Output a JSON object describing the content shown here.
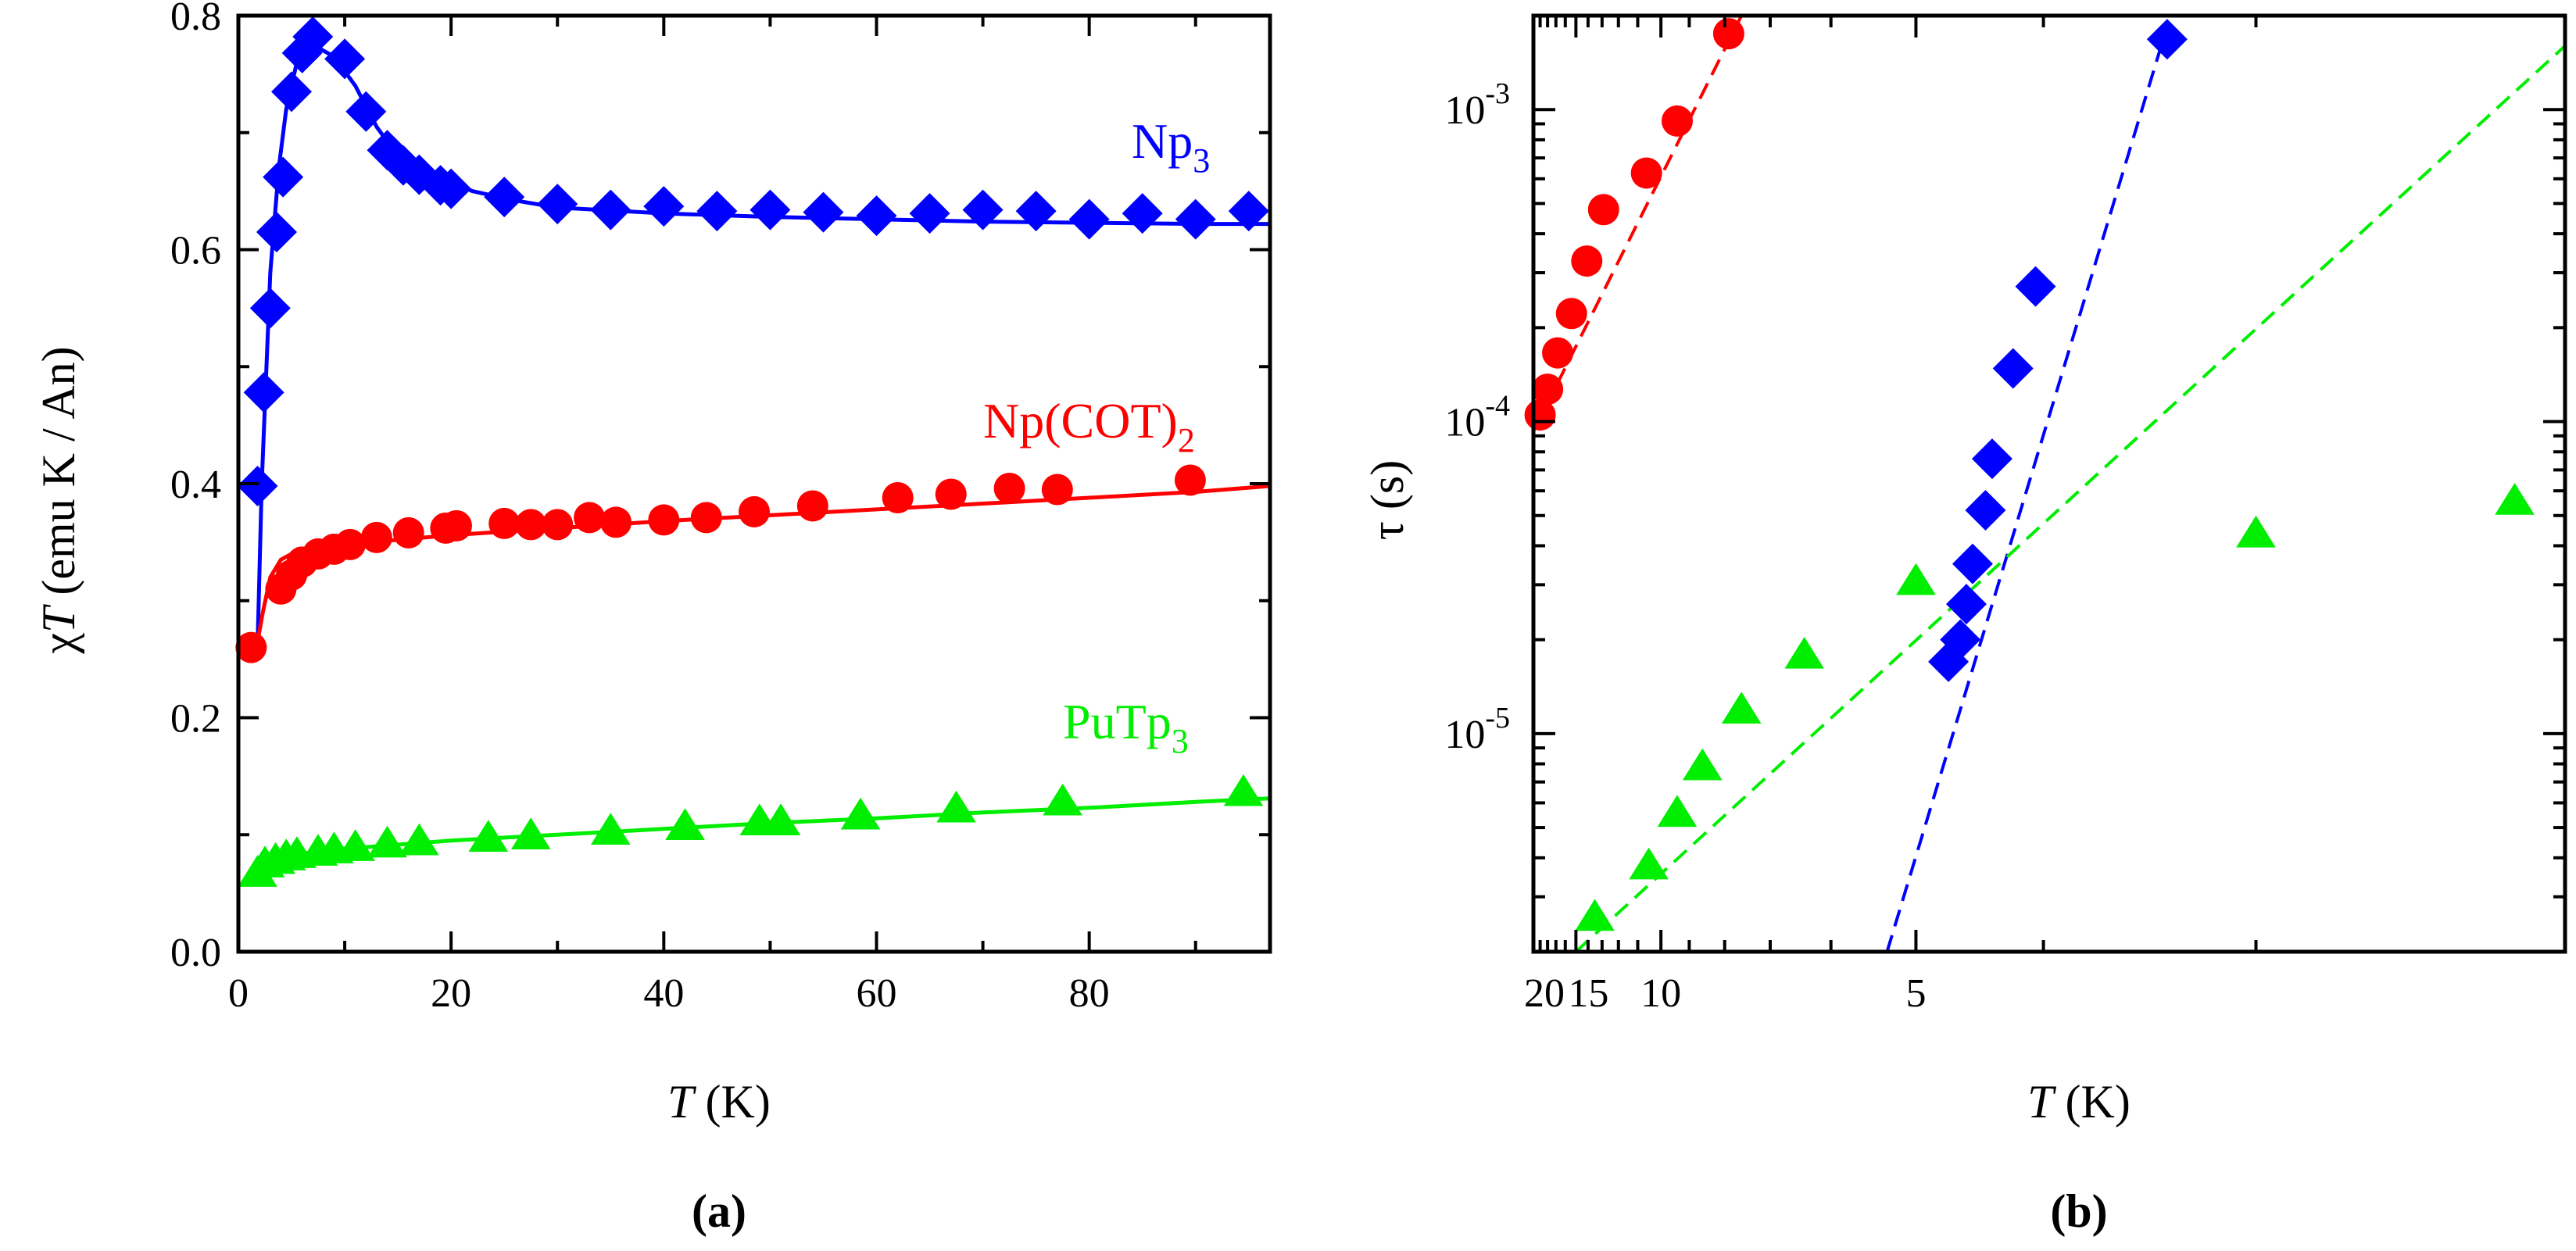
{
  "panels": {
    "a": {
      "label": "(a)"
    },
    "b": {
      "label": "(b)"
    }
  },
  "colors": {
    "np3": "#0000ff",
    "npcot2": "#ff0000",
    "putp3": "#00ee00",
    "axes": "#000000"
  },
  "chart_data": [
    {
      "type": "scatter",
      "panel": "(a)",
      "xlabel": {
        "italic": "T",
        "rest": " (K)"
      },
      "ylabel": {
        "prefix": "χ",
        "italic": "T",
        "rest": " (emu K / An)"
      },
      "xlim": [
        0,
        97
      ],
      "ylim": [
        0,
        0.8
      ],
      "xticks": [
        0,
        20,
        40,
        60,
        80
      ],
      "xtick_labels": [
        "0",
        "20",
        "40",
        "60",
        "80"
      ],
      "yticks": [
        0.0,
        0.2,
        0.4,
        0.6,
        0.8
      ],
      "ytick_labels": [
        "0.0",
        "0.2",
        "0.4",
        "0.6",
        "0.8"
      ],
      "series": [
        {
          "name": "Np3",
          "label_main": "Np",
          "label_sub": "3",
          "color": "#0000ff",
          "marker": "diamond",
          "points": [
            [
              1.8,
              0.398
            ],
            [
              2.4,
              0.478
            ],
            [
              3.0,
              0.55
            ],
            [
              3.6,
              0.615
            ],
            [
              4.2,
              0.662
            ],
            [
              5.0,
              0.735
            ],
            [
              6.0,
              0.768
            ],
            [
              7.0,
              0.782
            ],
            [
              10.0,
              0.763
            ],
            [
              12.0,
              0.718
            ],
            [
              14.0,
              0.685
            ],
            [
              15.5,
              0.672
            ],
            [
              17.0,
              0.664
            ],
            [
              19.0,
              0.655
            ],
            [
              20.0,
              0.652
            ],
            [
              25.0,
              0.645
            ],
            [
              30.0,
              0.639
            ],
            [
              35.0,
              0.634
            ],
            [
              40.0,
              0.637
            ],
            [
              45.0,
              0.633
            ],
            [
              50.0,
              0.634
            ],
            [
              55.0,
              0.632
            ],
            [
              60.0,
              0.629
            ],
            [
              65.0,
              0.631
            ],
            [
              70.0,
              0.634
            ],
            [
              75.0,
              0.633
            ],
            [
              80.0,
              0.626
            ],
            [
              85.0,
              0.631
            ],
            [
              90.0,
              0.626
            ],
            [
              95.0,
              0.633
            ]
          ],
          "fit": [
            [
              1.8,
              0.26
            ],
            [
              2.2,
              0.4
            ],
            [
              3.0,
              0.58
            ],
            [
              3.8,
              0.67
            ],
            [
              4.5,
              0.72
            ],
            [
              5.5,
              0.76
            ],
            [
              7.0,
              0.775
            ],
            [
              9.0,
              0.765
            ],
            [
              11.0,
              0.74
            ],
            [
              13.0,
              0.705
            ],
            [
              15.0,
              0.68
            ],
            [
              18.0,
              0.665
            ],
            [
              22.0,
              0.65
            ],
            [
              26.0,
              0.642
            ],
            [
              30.0,
              0.636
            ],
            [
              40.0,
              0.631
            ],
            [
              50.0,
              0.628
            ],
            [
              60.0,
              0.626
            ],
            [
              70.0,
              0.624
            ],
            [
              80.0,
              0.623
            ],
            [
              90.0,
              0.622
            ],
            [
              97.0,
              0.622
            ]
          ]
        },
        {
          "name": "Np(COT)2",
          "label_main": "Np(COT)",
          "label_sub": "2",
          "color": "#ff0000",
          "marker": "circle",
          "points": [
            [
              1.2,
              0.26
            ],
            [
              4.0,
              0.31
            ],
            [
              5.0,
              0.322
            ],
            [
              6.0,
              0.333
            ],
            [
              7.5,
              0.34
            ],
            [
              9.0,
              0.344
            ],
            [
              10.5,
              0.348
            ],
            [
              13.0,
              0.354
            ],
            [
              16.0,
              0.358
            ],
            [
              19.5,
              0.362
            ],
            [
              20.5,
              0.364
            ],
            [
              25.0,
              0.366
            ],
            [
              27.5,
              0.365
            ],
            [
              30.0,
              0.365
            ],
            [
              33.0,
              0.371
            ],
            [
              35.5,
              0.367
            ],
            [
              40.0,
              0.369
            ],
            [
              44.0,
              0.371
            ],
            [
              48.5,
              0.376
            ],
            [
              54.0,
              0.381
            ],
            [
              62.0,
              0.388
            ],
            [
              67.0,
              0.391
            ],
            [
              72.5,
              0.396
            ],
            [
              77.0,
              0.395
            ],
            [
              89.5,
              0.403
            ]
          ],
          "fit": [
            [
              1.8,
              0.265
            ],
            [
              2.3,
              0.29
            ],
            [
              3.0,
              0.32
            ],
            [
              4.0,
              0.335
            ],
            [
              5.0,
              0.34
            ],
            [
              7.0,
              0.344
            ],
            [
              10.0,
              0.348
            ],
            [
              15.0,
              0.352
            ],
            [
              20.0,
              0.356
            ],
            [
              30.0,
              0.362
            ],
            [
              40.0,
              0.368
            ],
            [
              50.0,
              0.373
            ],
            [
              60.0,
              0.378
            ],
            [
              70.0,
              0.383
            ],
            [
              80.0,
              0.388
            ],
            [
              90.0,
              0.393
            ],
            [
              97.0,
              0.398
            ]
          ]
        },
        {
          "name": "PuTp3",
          "label_main": "PuTp",
          "label_sub": "3",
          "color": "#00ee00",
          "marker": "triangle",
          "points": [
            [
              1.8,
              0.068
            ],
            [
              2.5,
              0.076
            ],
            [
              3.5,
              0.079
            ],
            [
              4.5,
              0.082
            ],
            [
              5.5,
              0.084
            ],
            [
              7.5,
              0.086
            ],
            [
              9.0,
              0.088
            ],
            [
              11.0,
              0.09
            ],
            [
              14.0,
              0.093
            ],
            [
              17.0,
              0.095
            ],
            [
              23.5,
              0.098
            ],
            [
              27.5,
              0.1
            ],
            [
              35.0,
              0.104
            ],
            [
              42.0,
              0.108
            ],
            [
              49.0,
              0.112
            ],
            [
              51.0,
              0.112
            ],
            [
              58.5,
              0.117
            ],
            [
              67.5,
              0.123
            ],
            [
              77.5,
              0.129
            ],
            [
              94.5,
              0.137
            ]
          ],
          "fit": [
            [
              1.5,
              0.075
            ],
            [
              5.0,
              0.083
            ],
            [
              10.0,
              0.088
            ],
            [
              20.0,
              0.095
            ],
            [
              30.0,
              0.1
            ],
            [
              40.0,
              0.105
            ],
            [
              50.0,
              0.11
            ],
            [
              60.0,
              0.114
            ],
            [
              70.0,
              0.119
            ],
            [
              80.0,
              0.123
            ],
            [
              90.0,
              0.128
            ],
            [
              97.0,
              0.131
            ]
          ]
        }
      ]
    },
    {
      "type": "scatter",
      "panel": "(b)",
      "xscale": "reciprocal",
      "yscale": "log",
      "xlabel": {
        "italic": "T",
        "rest": " (K)"
      },
      "ylabel": {
        "text": "τ (s)"
      },
      "xlim": [
        20,
        2.2
      ],
      "ylim": [
        2e-06,
        0.002
      ],
      "xticks": [
        20,
        15,
        10,
        5
      ],
      "xtick_labels": [
        "20",
        "15",
        "10",
        "5"
      ],
      "yticks": [
        1e-05,
        0.0001,
        0.001
      ],
      "ytick_labels": [
        [
          "10",
          "-5"
        ],
        [
          "10",
          "-4"
        ],
        [
          "10",
          "-3"
        ]
      ],
      "series": [
        {
          "name": "Np(COT)2",
          "color": "#ff0000",
          "marker": "circle",
          "points": [
            [
              19.0,
              0.000105
            ],
            [
              18.0,
              0.000127
            ],
            [
              16.8,
              0.000166
            ],
            [
              15.4,
              0.000222
            ],
            [
              14.1,
              0.000327
            ],
            [
              12.9,
              0.000478
            ],
            [
              10.6,
              0.000626
            ],
            [
              9.4,
              0.000919
            ],
            [
              7.9,
              0.00175
            ]
          ],
          "fit": [
            [
              20.0,
              9.3e-05
            ],
            [
              7.6,
              0.002
            ]
          ]
        },
        {
          "name": "Np3",
          "color": "#0000ff",
          "marker": "diamond",
          "points": [
            [
              4.7,
              1.7e-05
            ],
            [
              4.6,
              2e-05
            ],
            [
              4.55,
              2.6e-05
            ],
            [
              4.5,
              3.5e-05
            ],
            [
              4.4,
              5.2e-05
            ],
            [
              4.35,
              7.6e-05
            ],
            [
              4.2,
              0.000148
            ],
            [
              4.05,
              0.000271
            ],
            [
              3.35,
              0.00168
            ]
          ],
          "fit": [
            [
              5.3,
              2e-06
            ],
            [
              3.35,
              0.00185
            ]
          ]
        },
        {
          "name": "PuTp3",
          "color": "#00ee00",
          "marker": "triangle",
          "points": [
            [
              13.5,
              2.6e-06
            ],
            [
              10.5,
              3.8e-06
            ],
            [
              9.4,
              5.6e-06
            ],
            [
              8.6,
              7.9e-06
            ],
            [
              7.6,
              1.2e-05
            ],
            [
              6.4,
              1.8e-05
            ],
            [
              5.0,
              3.1e-05
            ],
            [
              3.0,
              4.4e-05
            ],
            [
              2.3,
              5.6e-05
            ]
          ],
          "fit": [
            [
              15.0,
              2e-06
            ],
            [
              2.2,
              0.0016
            ]
          ]
        }
      ]
    }
  ]
}
